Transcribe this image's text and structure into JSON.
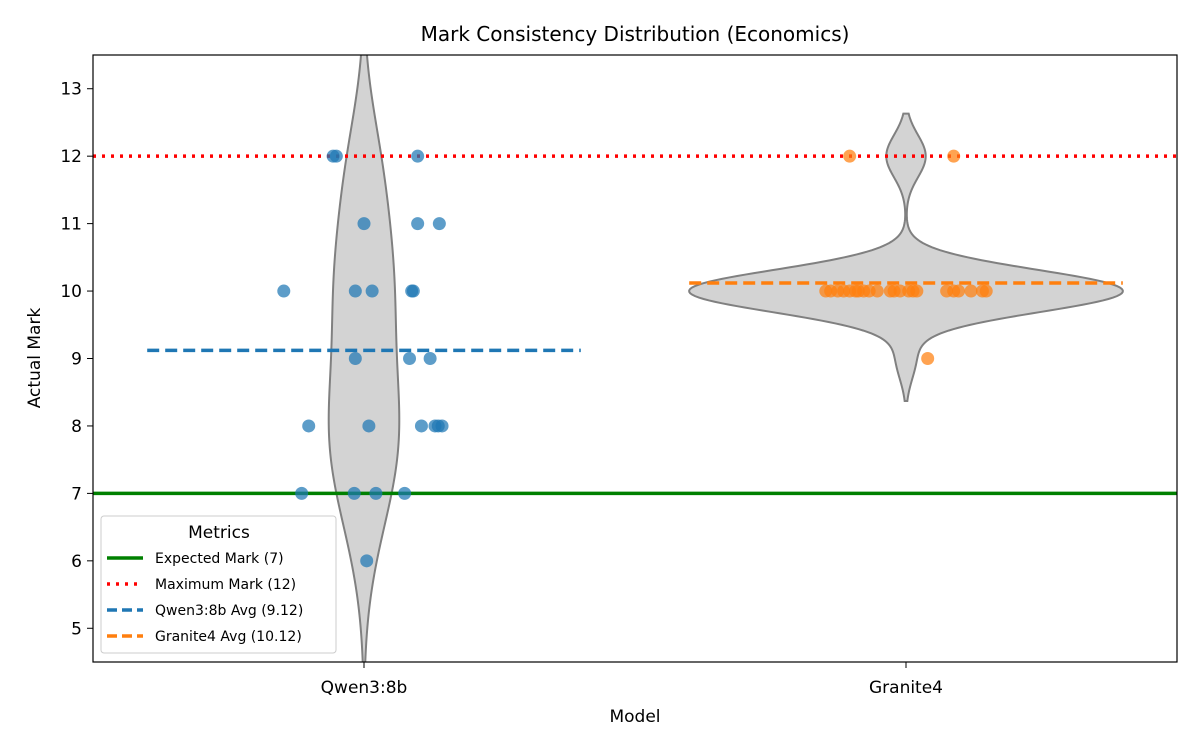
{
  "chart_data": {
    "type": "violin",
    "title": "Mark Consistency Distribution (Economics)",
    "xlabel": "Model",
    "ylabel": "Actual Mark",
    "categories": [
      "Qwen3:8b",
      "Granite4"
    ],
    "xlim": [
      -0.5,
      1.5
    ],
    "ylim": [
      4.5,
      13.5
    ],
    "yticks": [
      5,
      6,
      7,
      8,
      9,
      10,
      11,
      12,
      13
    ],
    "grid": false,
    "series": [
      {
        "category": "Qwen3:8b",
        "color": "#1f77b4",
        "points": [
          {
            "jitter": -0.057,
            "y": 12
          },
          {
            "jitter": -0.051,
            "y": 12
          },
          {
            "jitter": 0.099,
            "y": 12
          },
          {
            "jitter": 0.0,
            "y": 11
          },
          {
            "jitter": 0.099,
            "y": 11
          },
          {
            "jitter": 0.139,
            "y": 11
          },
          {
            "jitter": -0.148,
            "y": 10
          },
          {
            "jitter": -0.016,
            "y": 10
          },
          {
            "jitter": 0.015,
            "y": 10
          },
          {
            "jitter": 0.088,
            "y": 10
          },
          {
            "jitter": 0.091,
            "y": 10
          },
          {
            "jitter": -0.016,
            "y": 9
          },
          {
            "jitter": 0.084,
            "y": 9
          },
          {
            "jitter": 0.122,
            "y": 9
          },
          {
            "jitter": -0.102,
            "y": 8
          },
          {
            "jitter": 0.009,
            "y": 8
          },
          {
            "jitter": 0.106,
            "y": 8
          },
          {
            "jitter": 0.131,
            "y": 8
          },
          {
            "jitter": 0.137,
            "y": 8
          },
          {
            "jitter": 0.144,
            "y": 8
          },
          {
            "jitter": -0.115,
            "y": 7
          },
          {
            "jitter": -0.018,
            "y": 7
          },
          {
            "jitter": 0.022,
            "y": 7
          },
          {
            "jitter": 0.075,
            "y": 7
          },
          {
            "jitter": 0.005,
            "y": 6
          }
        ]
      },
      {
        "category": "Granite4",
        "color": "#ff7f0e",
        "points": [
          {
            "jitter": -0.104,
            "y": 12
          },
          {
            "jitter": 0.088,
            "y": 12
          },
          {
            "jitter": 0.04,
            "y": 9
          },
          {
            "jitter": -0.148,
            "y": 10
          },
          {
            "jitter": -0.139,
            "y": 10
          },
          {
            "jitter": -0.126,
            "y": 10
          },
          {
            "jitter": -0.115,
            "y": 10
          },
          {
            "jitter": -0.104,
            "y": 10
          },
          {
            "jitter": -0.093,
            "y": 10
          },
          {
            "jitter": -0.088,
            "y": 10
          },
          {
            "jitter": -0.078,
            "y": 10
          },
          {
            "jitter": -0.068,
            "y": 10
          },
          {
            "jitter": -0.053,
            "y": 10
          },
          {
            "jitter": -0.029,
            "y": 10
          },
          {
            "jitter": -0.022,
            "y": 10
          },
          {
            "jitter": -0.011,
            "y": 10
          },
          {
            "jitter": 0.005,
            "y": 10
          },
          {
            "jitter": 0.013,
            "y": 10
          },
          {
            "jitter": 0.02,
            "y": 10
          },
          {
            "jitter": 0.075,
            "y": 10
          },
          {
            "jitter": 0.088,
            "y": 10
          },
          {
            "jitter": 0.097,
            "y": 10
          },
          {
            "jitter": 0.12,
            "y": 10
          },
          {
            "jitter": 0.141,
            "y": 10
          },
          {
            "jitter": 0.148,
            "y": 10
          }
        ]
      }
    ],
    "violin_fill": "#d3d3d3",
    "violin_edge": "#808080",
    "reference_lines": [
      {
        "label": "Expected Mark (7)",
        "y": 7,
        "color": "#008000",
        "style": "solid",
        "span": "full"
      },
      {
        "label": "Maximum Mark (12)",
        "y": 12,
        "color": "#ff0000",
        "style": "dotted",
        "span": "full"
      },
      {
        "label": "Qwen3:8b Avg (9.12)",
        "y": 9.12,
        "color": "#1f77b4",
        "style": "dashed",
        "category": 0
      },
      {
        "label": "Granite4 Avg (10.12)",
        "y": 10.12,
        "color": "#ff7f0e",
        "style": "dashed",
        "category": 1
      }
    ],
    "legend": {
      "title": "Metrics",
      "position": "lower-left"
    }
  }
}
